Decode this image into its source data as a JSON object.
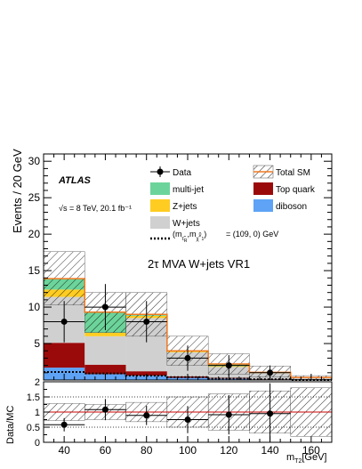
{
  "chart_data": [
    {
      "type": "bar",
      "stacked": true,
      "experiment": "ATLAS",
      "energy_lumi": "√s = 8 TeV, 20.1 fb⁻¹",
      "region_label": "2τ MVA W+jets VR1",
      "ylabel": "Events / 20 GeV",
      "xlabel": "m",
      "xlabel_sub": "T2",
      "xlabel_unit": "[GeV]",
      "xlim": [
        30,
        170
      ],
      "ylim": [
        0,
        31
      ],
      "xticks": [
        40,
        60,
        80,
        100,
        120,
        140,
        160
      ],
      "yticks": [
        5,
        10,
        15,
        20,
        25,
        30
      ],
      "bin_edges": [
        30,
        50,
        70,
        90,
        110,
        130,
        150,
        170
      ],
      "series": [
        {
          "name": "diboson",
          "color": "#5ea3f5",
          "values": [
            1.7,
            0.8,
            0.6,
            0.3,
            0.2,
            0.1,
            0.05
          ]
        },
        {
          "name": "Top quark",
          "color": "#9b0a0a",
          "values": [
            3.4,
            1.3,
            0.6,
            0.2,
            0.1,
            0.05,
            0.0
          ]
        },
        {
          "name": "W+jets",
          "color": "#d0d0d0",
          "values": [
            6.3,
            3.9,
            7.3,
            3.3,
            1.5,
            0.8,
            0.3
          ]
        },
        {
          "name": "Z+jets",
          "color": "#ffcc22",
          "values": [
            1.0,
            0.5,
            0.3,
            0.1,
            0.1,
            0.05,
            0.0
          ]
        },
        {
          "name": "multi-jet",
          "color": "#6cd49a",
          "values": [
            1.5,
            2.8,
            0.2,
            0.1,
            0.3,
            0.05,
            0.0
          ]
        }
      ],
      "total_sm": {
        "name": "Total SM",
        "color": "#f07820",
        "values": [
          13.9,
          9.3,
          9.0,
          4.0,
          2.2,
          1.05,
          0.35
        ]
      },
      "uncertainty_band": {
        "lower": [
          10.3,
          6.5,
          6.0,
          2.0,
          0.8,
          0.4,
          0.1
        ],
        "upper": [
          17.6,
          12.0,
          12.0,
          6.0,
          3.6,
          1.9,
          0.6
        ]
      },
      "signal": {
        "label": "= (109, 0) GeV",
        "values": [
          1.1,
          0.9,
          0.6,
          0.4,
          0.2,
          0.1,
          0.0
        ]
      },
      "data": {
        "name": "Data",
        "x": [
          40,
          60,
          80,
          100,
          120,
          140
        ],
        "y": [
          8,
          10,
          8,
          3,
          2,
          1
        ],
        "yerr": [
          2.83,
          3.16,
          2.83,
          1.73,
          1.41,
          1.0
        ]
      },
      "legend": [
        "Data",
        "Total SM",
        "multi-jet",
        "Top quark",
        "Z+jets",
        "diboson",
        "W+jets"
      ],
      "legend_position": "top-right",
      "grid": false
    },
    {
      "type": "scatter",
      "panel": "ratio",
      "ylabel": "Data/MC",
      "ylim": [
        0,
        2
      ],
      "yticks": [
        0,
        0.5,
        1,
        1.5,
        2
      ],
      "reference_line": 1,
      "x": [
        40,
        60,
        80,
        100,
        120,
        140
      ],
      "y": [
        0.58,
        1.08,
        0.89,
        0.75,
        0.91,
        0.95
      ],
      "yerr": [
        0.22,
        0.35,
        0.32,
        0.45,
        0.65,
        1.0
      ],
      "band_lower": [
        0.72,
        0.75,
        0.68,
        0.5,
        0.4,
        0.3,
        0.2
      ],
      "band_upper": [
        1.28,
        1.25,
        1.32,
        1.5,
        1.6,
        1.7,
        1.8
      ],
      "dotted_lines": [
        0.5,
        1.5
      ]
    }
  ]
}
